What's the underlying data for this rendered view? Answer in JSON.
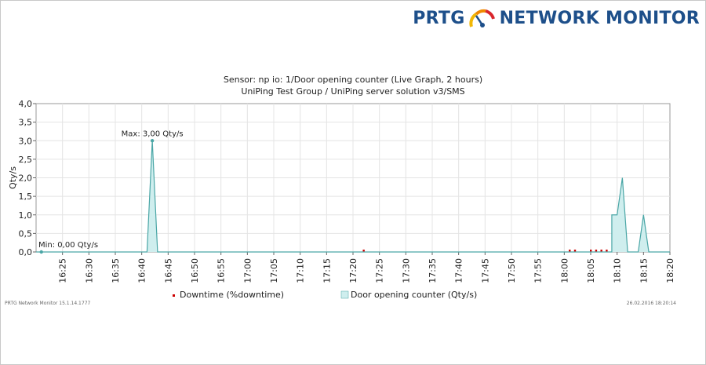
{
  "brand": {
    "left": "PRTG",
    "right": "NETWORK MONITOR"
  },
  "header": {
    "title": "Sensor: np io: 1/Door opening counter (Live Graph, 2 hours)",
    "subtitle": "UniPing Test Group / UniPing server solution v3/SMS"
  },
  "footer": {
    "version": "PRTG Network Monitor 15.1.14.1777",
    "timestamp": "26.02.2016 18:20:14"
  },
  "colors": {
    "fill": "#cfeeee",
    "line": "#4aa6a6",
    "downtime": "#cc0000",
    "grid": "#e4e4e4",
    "brand": "#1d4f8a"
  },
  "chart_data": {
    "type": "area",
    "ylabel": "Qty/s",
    "xlabel": "",
    "xlim": [
      "16:20",
      "18:20"
    ],
    "ylim": [
      0,
      4
    ],
    "y_ticks": [
      "0,0",
      "0,5",
      "1,0",
      "1,5",
      "2,0",
      "2,5",
      "3,0",
      "3,5",
      "4,0"
    ],
    "x_ticks": [
      "16:25",
      "16:30",
      "16:35",
      "16:40",
      "16:45",
      "16:50",
      "16:55",
      "17:00",
      "17:05",
      "17:10",
      "17:15",
      "17:20",
      "17:25",
      "17:30",
      "17:35",
      "17:40",
      "17:45",
      "17:50",
      "17:55",
      "18:00",
      "18:05",
      "18:10",
      "18:15",
      "18:20"
    ],
    "grid": true,
    "legend_position": "bottom",
    "series": [
      {
        "name": "Door opening counter (Qty/s)",
        "x": [
          "16:20",
          "16:41",
          "16:42",
          "16:43",
          "17:20",
          "18:09",
          "18:09",
          "18:10",
          "18:11",
          "18:12",
          "18:14",
          "18:15",
          "18:16",
          "18:20"
        ],
        "values": [
          0,
          0,
          3,
          0,
          0,
          0,
          1,
          1,
          2,
          0,
          0,
          1,
          0,
          0
        ]
      },
      {
        "name": "Downtime (%downtime)",
        "x": [
          "17:22",
          "18:01",
          "18:02",
          "18:05",
          "18:06",
          "18:07",
          "18:08"
        ],
        "values": [
          0,
          0,
          0,
          0,
          0,
          0,
          0
        ]
      }
    ],
    "annotations": [
      {
        "label": "Max: 3,00 Qty/s",
        "x": "16:42",
        "y": 3
      },
      {
        "label": "Min: 0,00 Qty/s",
        "x": "16:21",
        "y": 0
      }
    ]
  }
}
